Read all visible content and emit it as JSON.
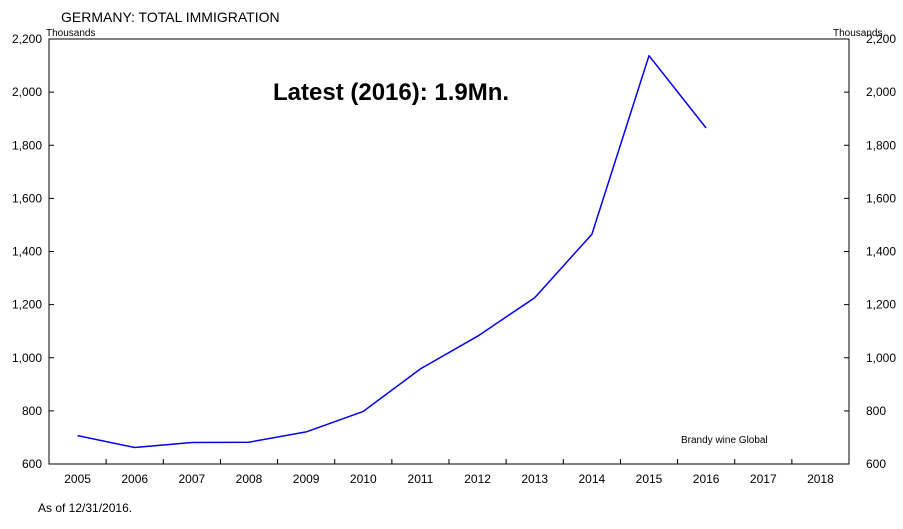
{
  "chart_data": {
    "type": "line",
    "title": "GERMANY: TOTAL IMMIGRATION",
    "unit_left": "Thousands",
    "unit_right": "Thousands",
    "annotation": "Latest (2016): 1.9Mn.",
    "source": "Brandy wine Global",
    "footnote": "As of  12/31/2016.",
    "x_categories": [
      "2005",
      "2006",
      "2007",
      "2008",
      "2009",
      "2010",
      "2011",
      "2012",
      "2013",
      "2014",
      "2015",
      "2016",
      "2017",
      "2018"
    ],
    "ylim": [
      600,
      2200
    ],
    "y_ticks": [
      600,
      800,
      1000,
      1200,
      1400,
      1600,
      1800,
      2000,
      2200
    ],
    "y_tick_labels": [
      "600",
      "800",
      "1,000",
      "1,200",
      "1,400",
      "1,600",
      "1,800",
      "2,000",
      "2,200"
    ],
    "series": [
      {
        "color": "#0000ee",
        "x": [
          "2005",
          "2006",
          "2007",
          "2008",
          "2009",
          "2010",
          "2011",
          "2012",
          "2013",
          "2014",
          "2015",
          "2016"
        ],
        "values": [
          707,
          662,
          681,
          682,
          721,
          798,
          958,
          1081,
          1226,
          1465,
          2137,
          1865
        ]
      }
    ],
    "grid": false,
    "legend": "none"
  }
}
